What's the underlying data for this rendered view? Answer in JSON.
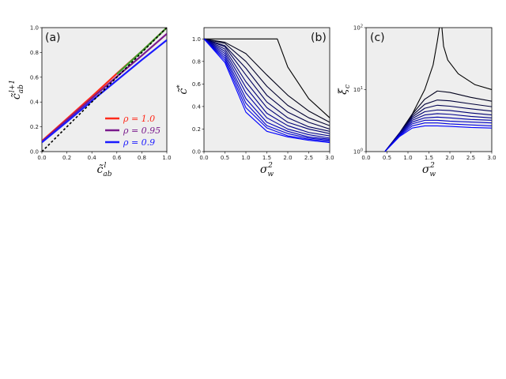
{
  "chart_data": [
    {
      "type": "line",
      "panel_label": "(a)",
      "xlabel": "c̃_ab^l",
      "ylabel": "c̃_ab^{l+1}",
      "xlim": [
        0,
        1
      ],
      "ylim": [
        0,
        1
      ],
      "xticks": [
        "0.0",
        "0.2",
        "0.4",
        "0.6",
        "0.8",
        "1.0"
      ],
      "yticks": [
        "0.0",
        "0.2",
        "0.4",
        "0.6",
        "0.8",
        "1.0"
      ],
      "background": "#eeeeee",
      "legend_placement": "lower-right",
      "series": [
        {
          "name": "ρ = 1.0",
          "color": "#ff2a1a",
          "x": [
            0,
            0.2,
            0.4,
            0.6,
            0.8,
            1.0
          ],
          "y": [
            0.085,
            0.265,
            0.445,
            0.63,
            0.81,
            1.0
          ]
        },
        {
          "name": "ρ = 0.95",
          "color": "#7a1a8c",
          "x": [
            0,
            0.2,
            0.4,
            0.6,
            0.8,
            1.0
          ],
          "y": [
            0.08,
            0.255,
            0.43,
            0.605,
            0.775,
            0.95
          ]
        },
        {
          "name": "ρ = 0.9",
          "color": "#1a1aff",
          "x": [
            0,
            0.2,
            0.4,
            0.6,
            0.8,
            1.0
          ],
          "y": [
            0.075,
            0.24,
            0.41,
            0.575,
            0.74,
            0.9
          ]
        },
        {
          "name": "",
          "color": "#3aa02a",
          "x": [
            0.6,
            0.8,
            1.0
          ],
          "y": [
            0.625,
            0.81,
            1.0
          ]
        },
        {
          "name": "",
          "color": "#000000",
          "dashed": true,
          "x": [
            0,
            1.0
          ],
          "y": [
            0,
            1.0
          ]
        }
      ]
    },
    {
      "type": "line",
      "panel_label": "(b)",
      "xlabel": "σ_w^2",
      "ylabel": "c̃*",
      "xlim": [
        0,
        3
      ],
      "ylim": [
        0,
        1.1
      ],
      "xticks": [
        "0.0",
        "0.5",
        "1.0",
        "1.5",
        "2.0",
        "2.5",
        "3.0"
      ],
      "yticks": [
        "0.0",
        "0.2",
        "0.4",
        "0.6",
        "0.8",
        "1.0"
      ],
      "background": "#eeeeee",
      "curve_color_start": "#000000",
      "curve_color_end": "#0000ff",
      "series": [
        {
          "x": [
            0,
            1.75,
            2.0,
            2.5,
            3.0
          ],
          "y": [
            1.0,
            1.0,
            0.75,
            0.47,
            0.3
          ]
        },
        {
          "x": [
            0,
            0.5,
            1.0,
            1.5,
            2.0,
            2.5,
            3.0
          ],
          "y": [
            1.0,
            0.97,
            0.87,
            0.68,
            0.5,
            0.36,
            0.26
          ]
        },
        {
          "x": [
            0,
            0.5,
            1.0,
            1.5,
            2.0,
            2.5,
            3.0
          ],
          "y": [
            1.0,
            0.96,
            0.8,
            0.58,
            0.41,
            0.3,
            0.23
          ]
        },
        {
          "x": [
            0,
            0.5,
            1.0,
            1.5,
            2.0,
            2.5,
            3.0
          ],
          "y": [
            1.0,
            0.94,
            0.74,
            0.5,
            0.35,
            0.26,
            0.2
          ]
        },
        {
          "x": [
            0,
            0.5,
            1.0,
            1.5,
            2.0,
            2.5,
            3.0
          ],
          "y": [
            1.0,
            0.93,
            0.68,
            0.44,
            0.3,
            0.22,
            0.18
          ]
        },
        {
          "x": [
            0,
            0.5,
            1.0,
            1.5,
            2.0,
            2.5,
            3.0
          ],
          "y": [
            1.0,
            0.91,
            0.62,
            0.39,
            0.26,
            0.2,
            0.16
          ]
        },
        {
          "x": [
            0,
            0.5,
            1.0,
            1.5,
            2.0,
            2.5,
            3.0
          ],
          "y": [
            1.0,
            0.89,
            0.57,
            0.34,
            0.23,
            0.17,
            0.14
          ]
        },
        {
          "x": [
            0,
            0.5,
            1.0,
            1.5,
            2.0,
            2.5,
            3.0
          ],
          "y": [
            1.0,
            0.87,
            0.52,
            0.3,
            0.2,
            0.15,
            0.12
          ]
        },
        {
          "x": [
            0,
            0.5,
            1.0,
            1.5,
            2.0,
            2.5,
            3.0
          ],
          "y": [
            1.0,
            0.85,
            0.47,
            0.26,
            0.18,
            0.13,
            0.11
          ]
        },
        {
          "x": [
            0,
            0.5,
            1.0,
            1.5,
            2.0,
            2.5,
            3.0
          ],
          "y": [
            1.0,
            0.83,
            0.43,
            0.23,
            0.16,
            0.12,
            0.1
          ]
        },
        {
          "x": [
            0,
            0.5,
            1.0,
            1.5,
            2.0,
            2.5,
            3.0
          ],
          "y": [
            1.0,
            0.81,
            0.39,
            0.21,
            0.14,
            0.11,
            0.09
          ]
        },
        {
          "x": [
            0,
            0.5,
            1.0,
            1.5,
            2.0,
            2.5,
            3.0
          ],
          "y": [
            1.0,
            0.79,
            0.35,
            0.18,
            0.13,
            0.1,
            0.08
          ]
        }
      ]
    },
    {
      "type": "line",
      "panel_label": "(c)",
      "xlabel": "σ_w^2",
      "ylabel": "ξ_c",
      "xlim": [
        0,
        3
      ],
      "ylim": [
        1,
        100
      ],
      "yscale": "log",
      "xticks": [
        "0.0",
        "0.5",
        "1.0",
        "1.5",
        "2.0",
        "2.5",
        "3.0"
      ],
      "yticks": [
        "10^0",
        "10^1",
        "10^2"
      ],
      "background": "#eeeeee",
      "curve_color_start": "#000000",
      "curve_color_end": "#0000ff",
      "series": [
        {
          "x": [
            0.45,
            0.8,
            1.1,
            1.4,
            1.6,
            1.7,
            1.75
          ],
          "y": [
            1.0,
            2.0,
            4.0,
            10.0,
            25.0,
            60.0,
            100.0
          ]
        },
        {
          "x": [
            1.81,
            1.85,
            1.95,
            2.2,
            2.6,
            3.0
          ],
          "y": [
            100.0,
            50.0,
            30.0,
            18.0,
            12.0,
            10.0
          ]
        },
        {
          "x": [
            0.45,
            0.8,
            1.1,
            1.4,
            1.7,
            2.0,
            2.5,
            3.0
          ],
          "y": [
            1.0,
            2.0,
            4.0,
            7.0,
            9.5,
            9.0,
            7.5,
            6.5
          ]
        },
        {
          "x": [
            0.45,
            0.8,
            1.1,
            1.4,
            1.7,
            2.0,
            2.5,
            3.0
          ],
          "y": [
            1.0,
            2.0,
            3.8,
            5.8,
            6.8,
            6.6,
            5.9,
            5.3
          ]
        },
        {
          "x": [
            0.45,
            0.8,
            1.1,
            1.4,
            1.7,
            2.0,
            2.5,
            3.0
          ],
          "y": [
            1.0,
            2.0,
            3.6,
            5.0,
            5.6,
            5.4,
            4.9,
            4.5
          ]
        },
        {
          "x": [
            0.45,
            0.8,
            1.1,
            1.4,
            1.7,
            2.0,
            2.5,
            3.0
          ],
          "y": [
            1.0,
            2.0,
            3.4,
            4.4,
            4.7,
            4.6,
            4.2,
            3.9
          ]
        },
        {
          "x": [
            0.45,
            0.8,
            1.1,
            1.4,
            1.7,
            2.0,
            2.5,
            3.0
          ],
          "y": [
            1.0,
            1.95,
            3.2,
            3.9,
            4.1,
            4.0,
            3.7,
            3.5
          ]
        },
        {
          "x": [
            0.45,
            0.8,
            1.1,
            1.4,
            1.7,
            2.0,
            2.5,
            3.0
          ],
          "y": [
            1.0,
            1.9,
            3.0,
            3.5,
            3.6,
            3.5,
            3.3,
            3.2
          ]
        },
        {
          "x": [
            0.45,
            0.8,
            1.1,
            1.4,
            1.7,
            2.0,
            2.5,
            3.0
          ],
          "y": [
            1.0,
            1.85,
            2.8,
            3.2,
            3.2,
            3.1,
            3.0,
            2.9
          ]
        },
        {
          "x": [
            0.45,
            0.8,
            1.1,
            1.4,
            1.7,
            2.0,
            2.5,
            3.0
          ],
          "y": [
            1.0,
            1.8,
            2.6,
            2.9,
            2.9,
            2.8,
            2.7,
            2.6
          ]
        },
        {
          "x": [
            0.45,
            0.8,
            1.1,
            1.4,
            1.7,
            2.0,
            2.5,
            3.0
          ],
          "y": [
            1.0,
            1.75,
            2.4,
            2.6,
            2.6,
            2.55,
            2.45,
            2.4
          ]
        }
      ]
    }
  ]
}
